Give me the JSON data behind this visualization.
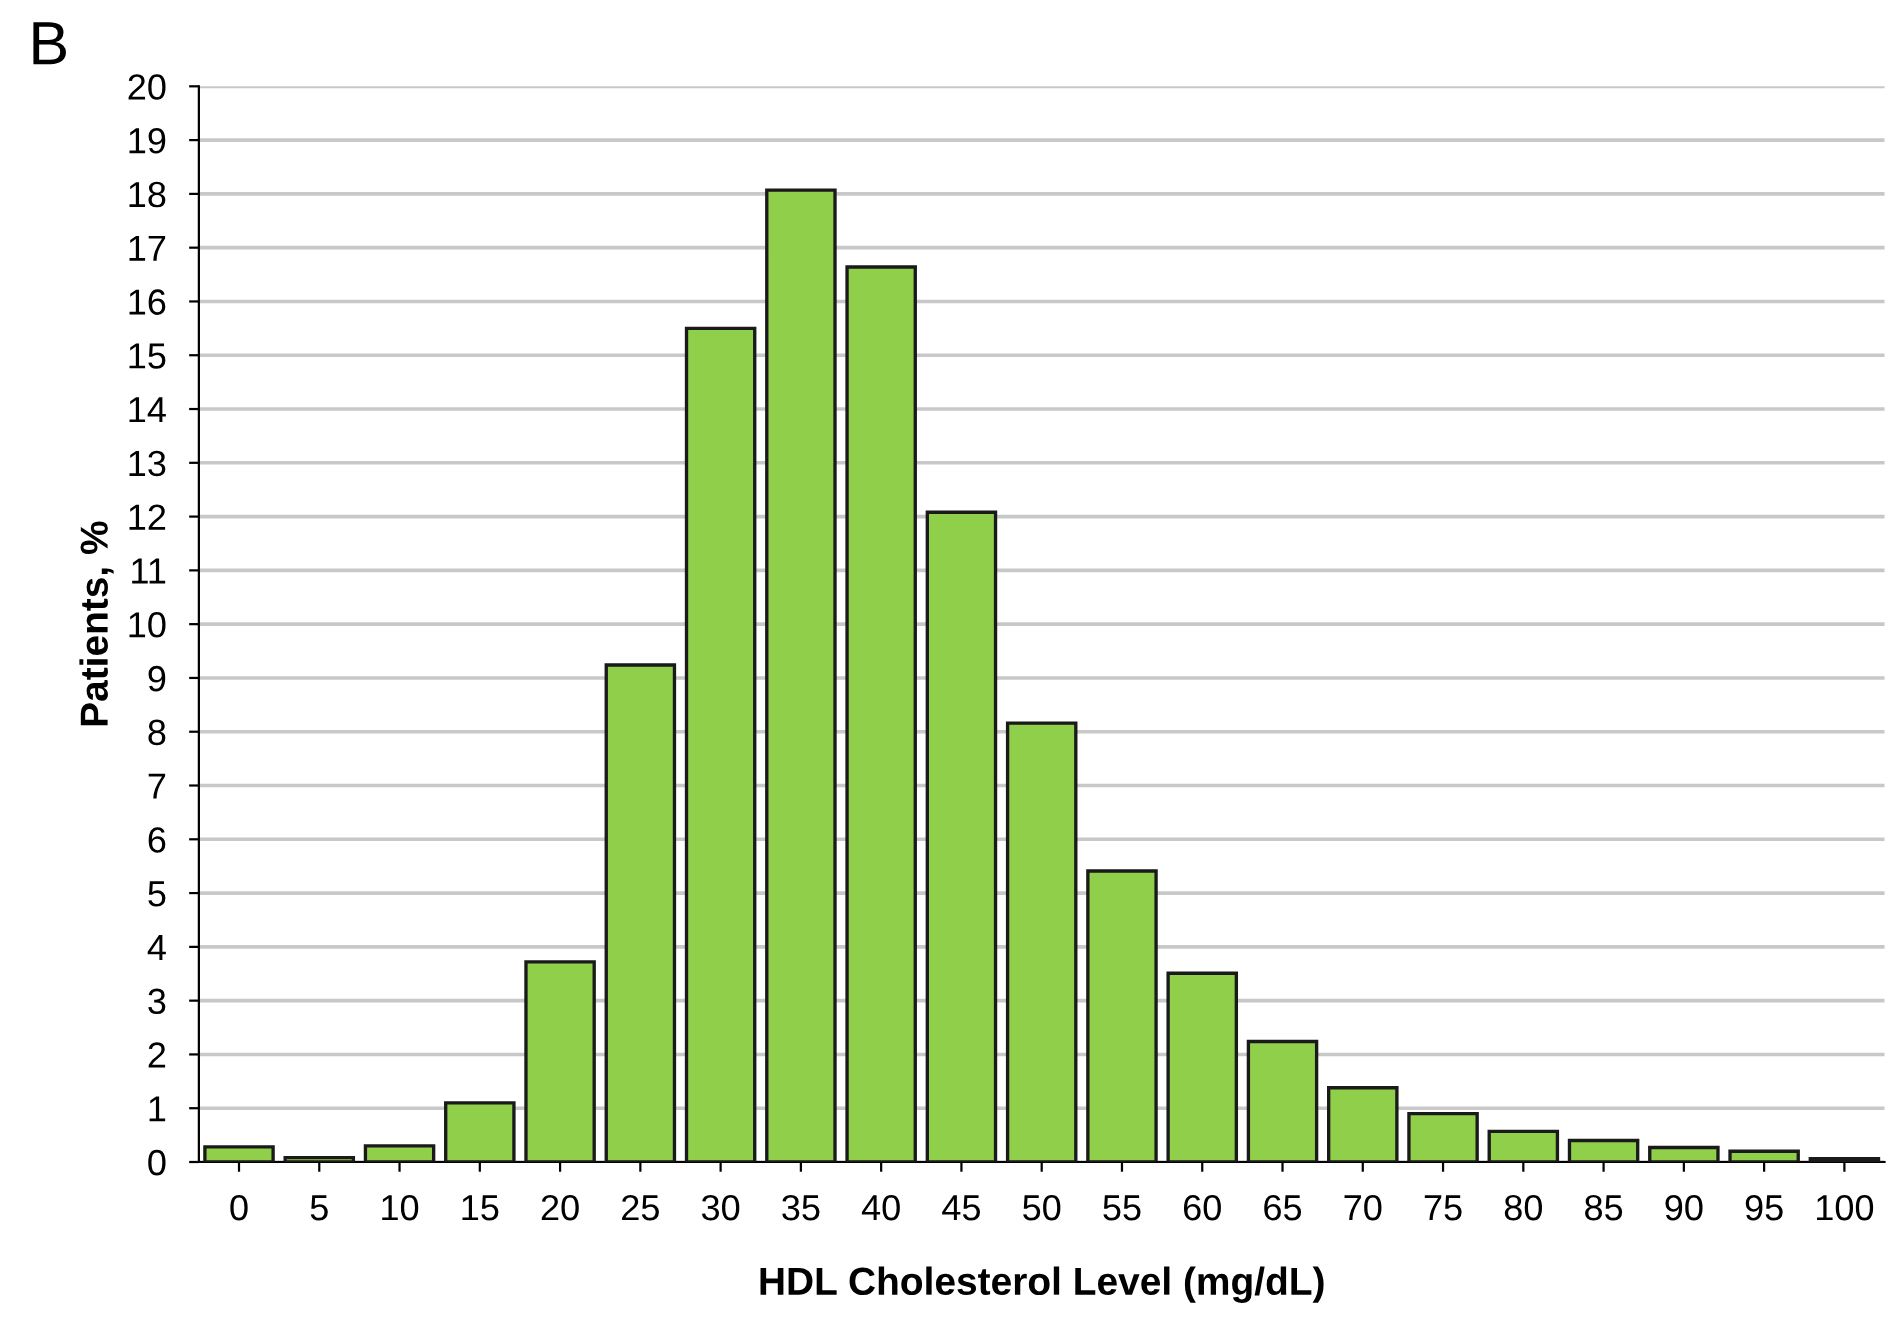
{
  "chart_data": {
    "type": "bar",
    "xlabel": "HDL Cholesterol Level (mg/dL)",
    "ylabel": "Patients, %",
    "categories": [
      "0",
      "5",
      "10",
      "15",
      "20",
      "25",
      "30",
      "35",
      "40",
      "45",
      "50",
      "55",
      "60",
      "65",
      "70",
      "75",
      "80",
      "85",
      "90",
      "95",
      "100"
    ],
    "values": [
      0.28,
      0.08,
      0.3,
      1.1,
      3.72,
      9.24,
      15.5,
      18.07,
      16.64,
      12.08,
      8.16,
      5.41,
      3.51,
      2.24,
      1.38,
      0.9,
      0.57,
      0.4,
      0.27,
      0.2,
      0.06
    ],
    "color": "#8fcf4a",
    "ylim": [
      0,
      20
    ],
    "yticks": [
      0,
      1,
      2,
      3,
      4,
      5,
      6,
      7,
      8,
      9,
      10,
      11,
      12,
      13,
      14,
      15,
      16,
      17,
      18,
      19,
      20
    ],
    "grid": "y",
    "annotations": [
      "B"
    ]
  }
}
